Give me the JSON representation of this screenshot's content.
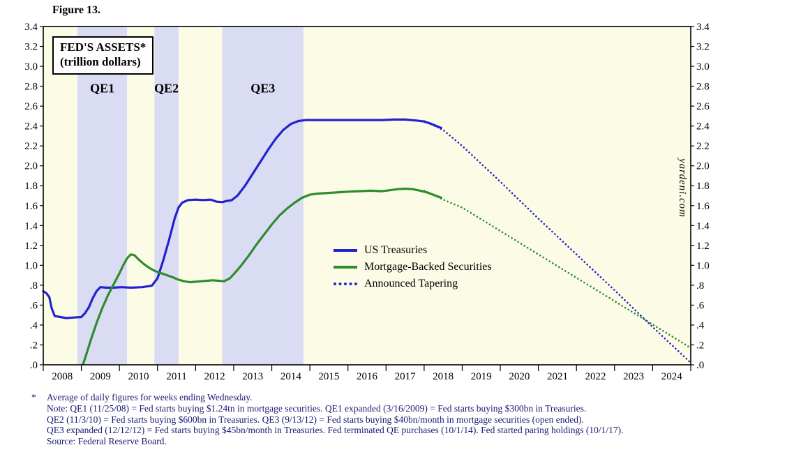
{
  "figure": {
    "title": "Figure 13."
  },
  "chart": {
    "title_line1": "FED'S ASSETS*",
    "title_line2": "(trillion dollars)",
    "watermark": "yardeni.com",
    "colors": {
      "background": "#FCFCE6",
      "band": "#DADCF4",
      "treasuries": "#2222CE",
      "mbs": "#2E8B2E",
      "axis": "#000000",
      "footnote_text": "#191970"
    },
    "legend": [
      {
        "label": "US Treasuries",
        "style": "solid",
        "color": "#2222CE"
      },
      {
        "label": "Mortgage-Backed Securities",
        "style": "solid",
        "color": "#2E8B2E"
      },
      {
        "label": "Announced Tapering",
        "style": "dotted",
        "color": "#2222CE"
      }
    ]
  },
  "chart_data": {
    "type": "line",
    "title": "FED'S ASSETS* (trillion dollars)",
    "units": "trillion dollars",
    "xlabel": "",
    "ylabel": "trillion dollars",
    "xlim": [
      2008,
      2025
    ],
    "ylim": [
      0,
      3.4
    ],
    "ytick_step": 0.2,
    "ytick_labels": [
      ".0",
      ".2",
      ".4",
      ".6",
      ".8",
      "1.0",
      "1.2",
      "1.4",
      "1.6",
      "1.8",
      "2.0",
      "2.2",
      "2.4",
      "2.6",
      "2.8",
      "3.0",
      "3.2",
      "3.4"
    ],
    "xticks": [
      2008,
      2009,
      2010,
      2011,
      2012,
      2013,
      2014,
      2015,
      2016,
      2017,
      2018,
      2019,
      2020,
      2021,
      2022,
      2023,
      2024
    ],
    "grid": false,
    "legend_position": "inside-center",
    "band_label_y": 2.78,
    "bands": [
      {
        "label": "QE1",
        "start": 2008.9,
        "end": 2010.2
      },
      {
        "label": "QE2",
        "start": 2010.92,
        "end": 2011.55
      },
      {
        "label": "QE3",
        "start": 2012.7,
        "end": 2014.83
      }
    ],
    "series": [
      {
        "id": "us-treasuries",
        "name": "US Treasuries",
        "style": "solid",
        "color": "#2222CE",
        "points": [
          [
            2008.0,
            0.74
          ],
          [
            2008.08,
            0.72
          ],
          [
            2008.16,
            0.68
          ],
          [
            2008.22,
            0.57
          ],
          [
            2008.3,
            0.49
          ],
          [
            2008.45,
            0.48
          ],
          [
            2008.6,
            0.47
          ],
          [
            2008.8,
            0.475
          ],
          [
            2009.0,
            0.48
          ],
          [
            2009.1,
            0.52
          ],
          [
            2009.2,
            0.58
          ],
          [
            2009.3,
            0.67
          ],
          [
            2009.4,
            0.74
          ],
          [
            2009.5,
            0.78
          ],
          [
            2009.65,
            0.775
          ],
          [
            2009.85,
            0.775
          ],
          [
            2010.05,
            0.78
          ],
          [
            2010.3,
            0.775
          ],
          [
            2010.6,
            0.78
          ],
          [
            2010.85,
            0.795
          ],
          [
            2011.0,
            0.87
          ],
          [
            2011.15,
            1.05
          ],
          [
            2011.3,
            1.25
          ],
          [
            2011.45,
            1.47
          ],
          [
            2011.55,
            1.58
          ],
          [
            2011.65,
            1.63
          ],
          [
            2011.8,
            1.655
          ],
          [
            2012.0,
            1.66
          ],
          [
            2012.2,
            1.655
          ],
          [
            2012.4,
            1.66
          ],
          [
            2012.55,
            1.64
          ],
          [
            2012.7,
            1.635
          ],
          [
            2012.8,
            1.645
          ],
          [
            2012.95,
            1.655
          ],
          [
            2013.1,
            1.7
          ],
          [
            2013.3,
            1.8
          ],
          [
            2013.5,
            1.92
          ],
          [
            2013.7,
            2.04
          ],
          [
            2013.9,
            2.16
          ],
          [
            2014.1,
            2.27
          ],
          [
            2014.3,
            2.36
          ],
          [
            2014.5,
            2.42
          ],
          [
            2014.7,
            2.45
          ],
          [
            2014.9,
            2.46
          ],
          [
            2015.3,
            2.46
          ],
          [
            2015.7,
            2.46
          ],
          [
            2016.1,
            2.46
          ],
          [
            2016.5,
            2.46
          ],
          [
            2016.9,
            2.46
          ],
          [
            2017.2,
            2.465
          ],
          [
            2017.5,
            2.465
          ],
          [
            2017.8,
            2.455
          ],
          [
            2018.0,
            2.445
          ],
          [
            2018.2,
            2.42
          ],
          [
            2018.45,
            2.38
          ]
        ]
      },
      {
        "id": "mbs",
        "name": "Mortgage-Backed Securities",
        "style": "solid",
        "color": "#2E8B2E",
        "points": [
          [
            2009.05,
            0.01
          ],
          [
            2009.15,
            0.13
          ],
          [
            2009.25,
            0.25
          ],
          [
            2009.4,
            0.42
          ],
          [
            2009.55,
            0.57
          ],
          [
            2009.7,
            0.7
          ],
          [
            2009.85,
            0.81
          ],
          [
            2010.0,
            0.92
          ],
          [
            2010.1,
            1.0
          ],
          [
            2010.2,
            1.07
          ],
          [
            2010.3,
            1.11
          ],
          [
            2010.4,
            1.1
          ],
          [
            2010.5,
            1.06
          ],
          [
            2010.65,
            1.01
          ],
          [
            2010.8,
            0.97
          ],
          [
            2010.95,
            0.94
          ],
          [
            2011.1,
            0.92
          ],
          [
            2011.25,
            0.9
          ],
          [
            2011.4,
            0.88
          ],
          [
            2011.55,
            0.855
          ],
          [
            2011.7,
            0.84
          ],
          [
            2011.85,
            0.83
          ],
          [
            2012.0,
            0.835
          ],
          [
            2012.15,
            0.84
          ],
          [
            2012.3,
            0.845
          ],
          [
            2012.45,
            0.85
          ],
          [
            2012.6,
            0.845
          ],
          [
            2012.75,
            0.84
          ],
          [
            2012.9,
            0.87
          ],
          [
            2013.0,
            0.91
          ],
          [
            2013.2,
            1.0
          ],
          [
            2013.4,
            1.1
          ],
          [
            2013.6,
            1.21
          ],
          [
            2013.8,
            1.31
          ],
          [
            2014.0,
            1.41
          ],
          [
            2014.2,
            1.5
          ],
          [
            2014.4,
            1.57
          ],
          [
            2014.6,
            1.63
          ],
          [
            2014.8,
            1.68
          ],
          [
            2015.0,
            1.71
          ],
          [
            2015.2,
            1.72
          ],
          [
            2015.4,
            1.725
          ],
          [
            2015.6,
            1.73
          ],
          [
            2015.8,
            1.735
          ],
          [
            2016.0,
            1.74
          ],
          [
            2016.3,
            1.745
          ],
          [
            2016.6,
            1.75
          ],
          [
            2016.9,
            1.745
          ],
          [
            2017.1,
            1.755
          ],
          [
            2017.3,
            1.765
          ],
          [
            2017.5,
            1.77
          ],
          [
            2017.7,
            1.765
          ],
          [
            2017.9,
            1.75
          ],
          [
            2018.1,
            1.73
          ],
          [
            2018.3,
            1.7
          ],
          [
            2018.45,
            1.68
          ]
        ]
      },
      {
        "id": "tapering-treasuries",
        "name": "Announced Tapering (US Treasuries)",
        "style": "dotted",
        "color": "#2222CE",
        "points": [
          [
            2018.0,
            2.45
          ],
          [
            2018.5,
            2.36
          ],
          [
            2019.0,
            2.2
          ],
          [
            2020.0,
            1.84
          ],
          [
            2021.0,
            1.47
          ],
          [
            2022.0,
            1.11
          ],
          [
            2023.0,
            0.75
          ],
          [
            2024.0,
            0.38
          ],
          [
            2025.0,
            0.02
          ]
        ]
      },
      {
        "id": "tapering-mbs",
        "name": "Announced Tapering (Mortgage-Backed Securities)",
        "style": "dotted",
        "color": "#2E8B2E",
        "points": [
          [
            2018.0,
            1.75
          ],
          [
            2018.5,
            1.66
          ],
          [
            2019.0,
            1.58
          ],
          [
            2020.0,
            1.345
          ],
          [
            2021.0,
            1.11
          ],
          [
            2022.0,
            0.875
          ],
          [
            2023.0,
            0.64
          ],
          [
            2024.0,
            0.405
          ],
          [
            2025.0,
            0.17
          ]
        ]
      }
    ]
  },
  "footnotes": {
    "asterisk": "*",
    "lines": [
      "Average of daily figures for weeks ending Wednesday.",
      "Note: QE1 (11/25/08) = Fed starts buying $1.24tn in mortgage securities. QE1 expanded (3/16/2009) = Fed starts buying $300bn in Treasuries.",
      "QE2 (11/3/10) = Fed starts buying $600bn in Treasuries. QE3 (9/13/12) = Fed starts buying $40bn/month in mortgage securities (open ended).",
      "QE3 expanded (12/12/12) = Fed starts buying $45bn/month in Treasuries. Fed terminated QE purchases (10/1/14). Fed started paring holdings (10/1/17).",
      "Source: Federal Reserve Board."
    ]
  }
}
